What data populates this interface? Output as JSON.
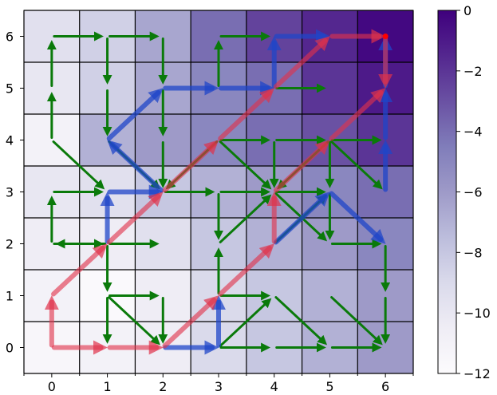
{
  "chart_data": {
    "type": "heatmap",
    "title": "",
    "xlabel": "",
    "ylabel": "",
    "xlim": [
      -0.5,
      6.5
    ],
    "ylim": [
      -0.5,
      6.5
    ],
    "x_ticks": [
      "0",
      "1",
      "2",
      "3",
      "4",
      "5",
      "6"
    ],
    "y_ticks": [
      "0",
      "1",
      "2",
      "3",
      "4",
      "5",
      "6"
    ],
    "grid": true,
    "colormap": {
      "name": "Purples",
      "vmin": -12,
      "vmax": 0,
      "colors": [
        "#fcfbfd",
        "#efedf5",
        "#dadaeb",
        "#bcbddc",
        "#9e9ac8",
        "#807dba",
        "#6a51a3",
        "#54278f",
        "#3f007d"
      ],
      "ticks": [
        "0",
        "−2",
        "−4",
        "−6",
        "−8",
        "−10",
        "−12"
      ],
      "tick_values": [
        0,
        -2,
        -4,
        -6,
        -8,
        -10,
        -12
      ]
    },
    "values": [
      [
        -11.5,
        -11.0,
        -10.5,
        -9.0,
        -8.0,
        -7.0,
        -6.0
      ],
      [
        -11.0,
        -11.8,
        -10.5,
        -9.0,
        -8.0,
        -7.0,
        -6.0
      ],
      [
        -10.5,
        -10.5,
        -9.5,
        -8.0,
        -7.0,
        -6.0,
        -5.0
      ],
      [
        -10.0,
        -9.5,
        -8.0,
        -7.0,
        -6.0,
        -5.0,
        -4.0
      ],
      [
        -11.0,
        -7.0,
        -6.0,
        -5.0,
        -4.0,
        -3.0,
        -2.0
      ],
      [
        -10.0,
        -8.5,
        -6.5,
        -5.0,
        -4.0,
        -2.0,
        -1.0
      ],
      [
        -9.5,
        -8.5,
        -6.5,
        -4.0,
        -2.5,
        -1.5,
        -0.3
      ]
    ],
    "green_arrows": [
      [
        0,
        5,
        0,
        6
      ],
      [
        0,
        6,
        1,
        6
      ],
      [
        1,
        6,
        2,
        6
      ],
      [
        1,
        6,
        1,
        5
      ],
      [
        2,
        6,
        2,
        5
      ],
      [
        1,
        5,
        1,
        4
      ],
      [
        0,
        4,
        0,
        5
      ],
      [
        0,
        4,
        1,
        3
      ],
      [
        1,
        4,
        2,
        3
      ],
      [
        2,
        4,
        2,
        3
      ],
      [
        2,
        5,
        2,
        4
      ],
      [
        3,
        5,
        3,
        6
      ],
      [
        3,
        6,
        4,
        6
      ],
      [
        3,
        4,
        2,
        3
      ],
      [
        3,
        4,
        4,
        3
      ],
      [
        3,
        4,
        4,
        4
      ],
      [
        4,
        4,
        5,
        4
      ],
      [
        4,
        5,
        5,
        5
      ],
      [
        4,
        4,
        4,
        3
      ],
      [
        5,
        4,
        4,
        3
      ],
      [
        5,
        4,
        6,
        4
      ],
      [
        5,
        4,
        6,
        3
      ],
      [
        5,
        4,
        5,
        3
      ],
      [
        2,
        3,
        3,
        3
      ],
      [
        0,
        3,
        1,
        3
      ],
      [
        0,
        2,
        0,
        3
      ],
      [
        0,
        2,
        1,
        2
      ],
      [
        1,
        2,
        2,
        2
      ],
      [
        1,
        2,
        0,
        2
      ],
      [
        3,
        3,
        3,
        2
      ],
      [
        3,
        3,
        4,
        3
      ],
      [
        4,
        3,
        5,
        3
      ],
      [
        5,
        3,
        5,
        2
      ],
      [
        4,
        3,
        5,
        2
      ],
      [
        5,
        2,
        6,
        2
      ],
      [
        4,
        2,
        5,
        3
      ],
      [
        3,
        2,
        4,
        3
      ],
      [
        1,
        2,
        1,
        1
      ],
      [
        1,
        1,
        2,
        1
      ],
      [
        2,
        1,
        2,
        0
      ],
      [
        1,
        1,
        2,
        0
      ],
      [
        1,
        1,
        1,
        0
      ],
      [
        3,
        1,
        3,
        2
      ],
      [
        3,
        1,
        4,
        1
      ],
      [
        3,
        0,
        4,
        1
      ],
      [
        3,
        0,
        4,
        0
      ],
      [
        4,
        1,
        5,
        0
      ],
      [
        4,
        0,
        5,
        0
      ],
      [
        5,
        0,
        6,
        0
      ],
      [
        5,
        1,
        6,
        0
      ],
      [
        6,
        1,
        6,
        0
      ],
      [
        6,
        2,
        6,
        1
      ]
    ],
    "blue_arrows": [
      [
        2,
        0,
        3,
        0
      ],
      [
        3,
        0,
        3,
        1
      ],
      [
        1,
        2,
        1,
        3
      ],
      [
        1,
        3,
        2,
        3
      ],
      [
        2,
        3,
        1,
        4
      ],
      [
        1,
        4,
        2,
        5
      ],
      [
        2,
        5,
        3,
        5
      ],
      [
        3,
        5,
        4,
        5
      ],
      [
        4,
        5,
        4,
        6
      ],
      [
        4,
        6,
        5,
        6
      ],
      [
        4,
        2,
        5,
        3
      ],
      [
        5,
        3,
        6,
        2
      ],
      [
        6,
        3,
        6,
        4
      ],
      [
        6,
        4,
        6,
        5
      ],
      [
        6,
        5,
        6,
        6
      ]
    ],
    "red_arrows": [
      [
        0,
        0,
        1,
        0
      ],
      [
        1,
        0,
        2,
        0
      ],
      [
        0,
        0,
        0,
        1
      ],
      [
        0,
        1,
        1,
        2
      ],
      [
        1,
        2,
        2,
        3
      ],
      [
        2,
        0,
        3,
        1
      ],
      [
        3,
        1,
        4,
        2
      ],
      [
        4,
        2,
        4,
        3
      ],
      [
        4,
        3,
        5,
        4
      ],
      [
        5,
        4,
        6,
        5
      ],
      [
        2,
        3,
        3,
        4
      ],
      [
        3,
        4,
        4,
        5
      ],
      [
        4,
        5,
        5,
        6
      ],
      [
        5,
        6,
        6,
        6
      ],
      [
        6,
        6,
        6,
        5
      ]
    ],
    "marker": [
      6,
      6
    ]
  }
}
